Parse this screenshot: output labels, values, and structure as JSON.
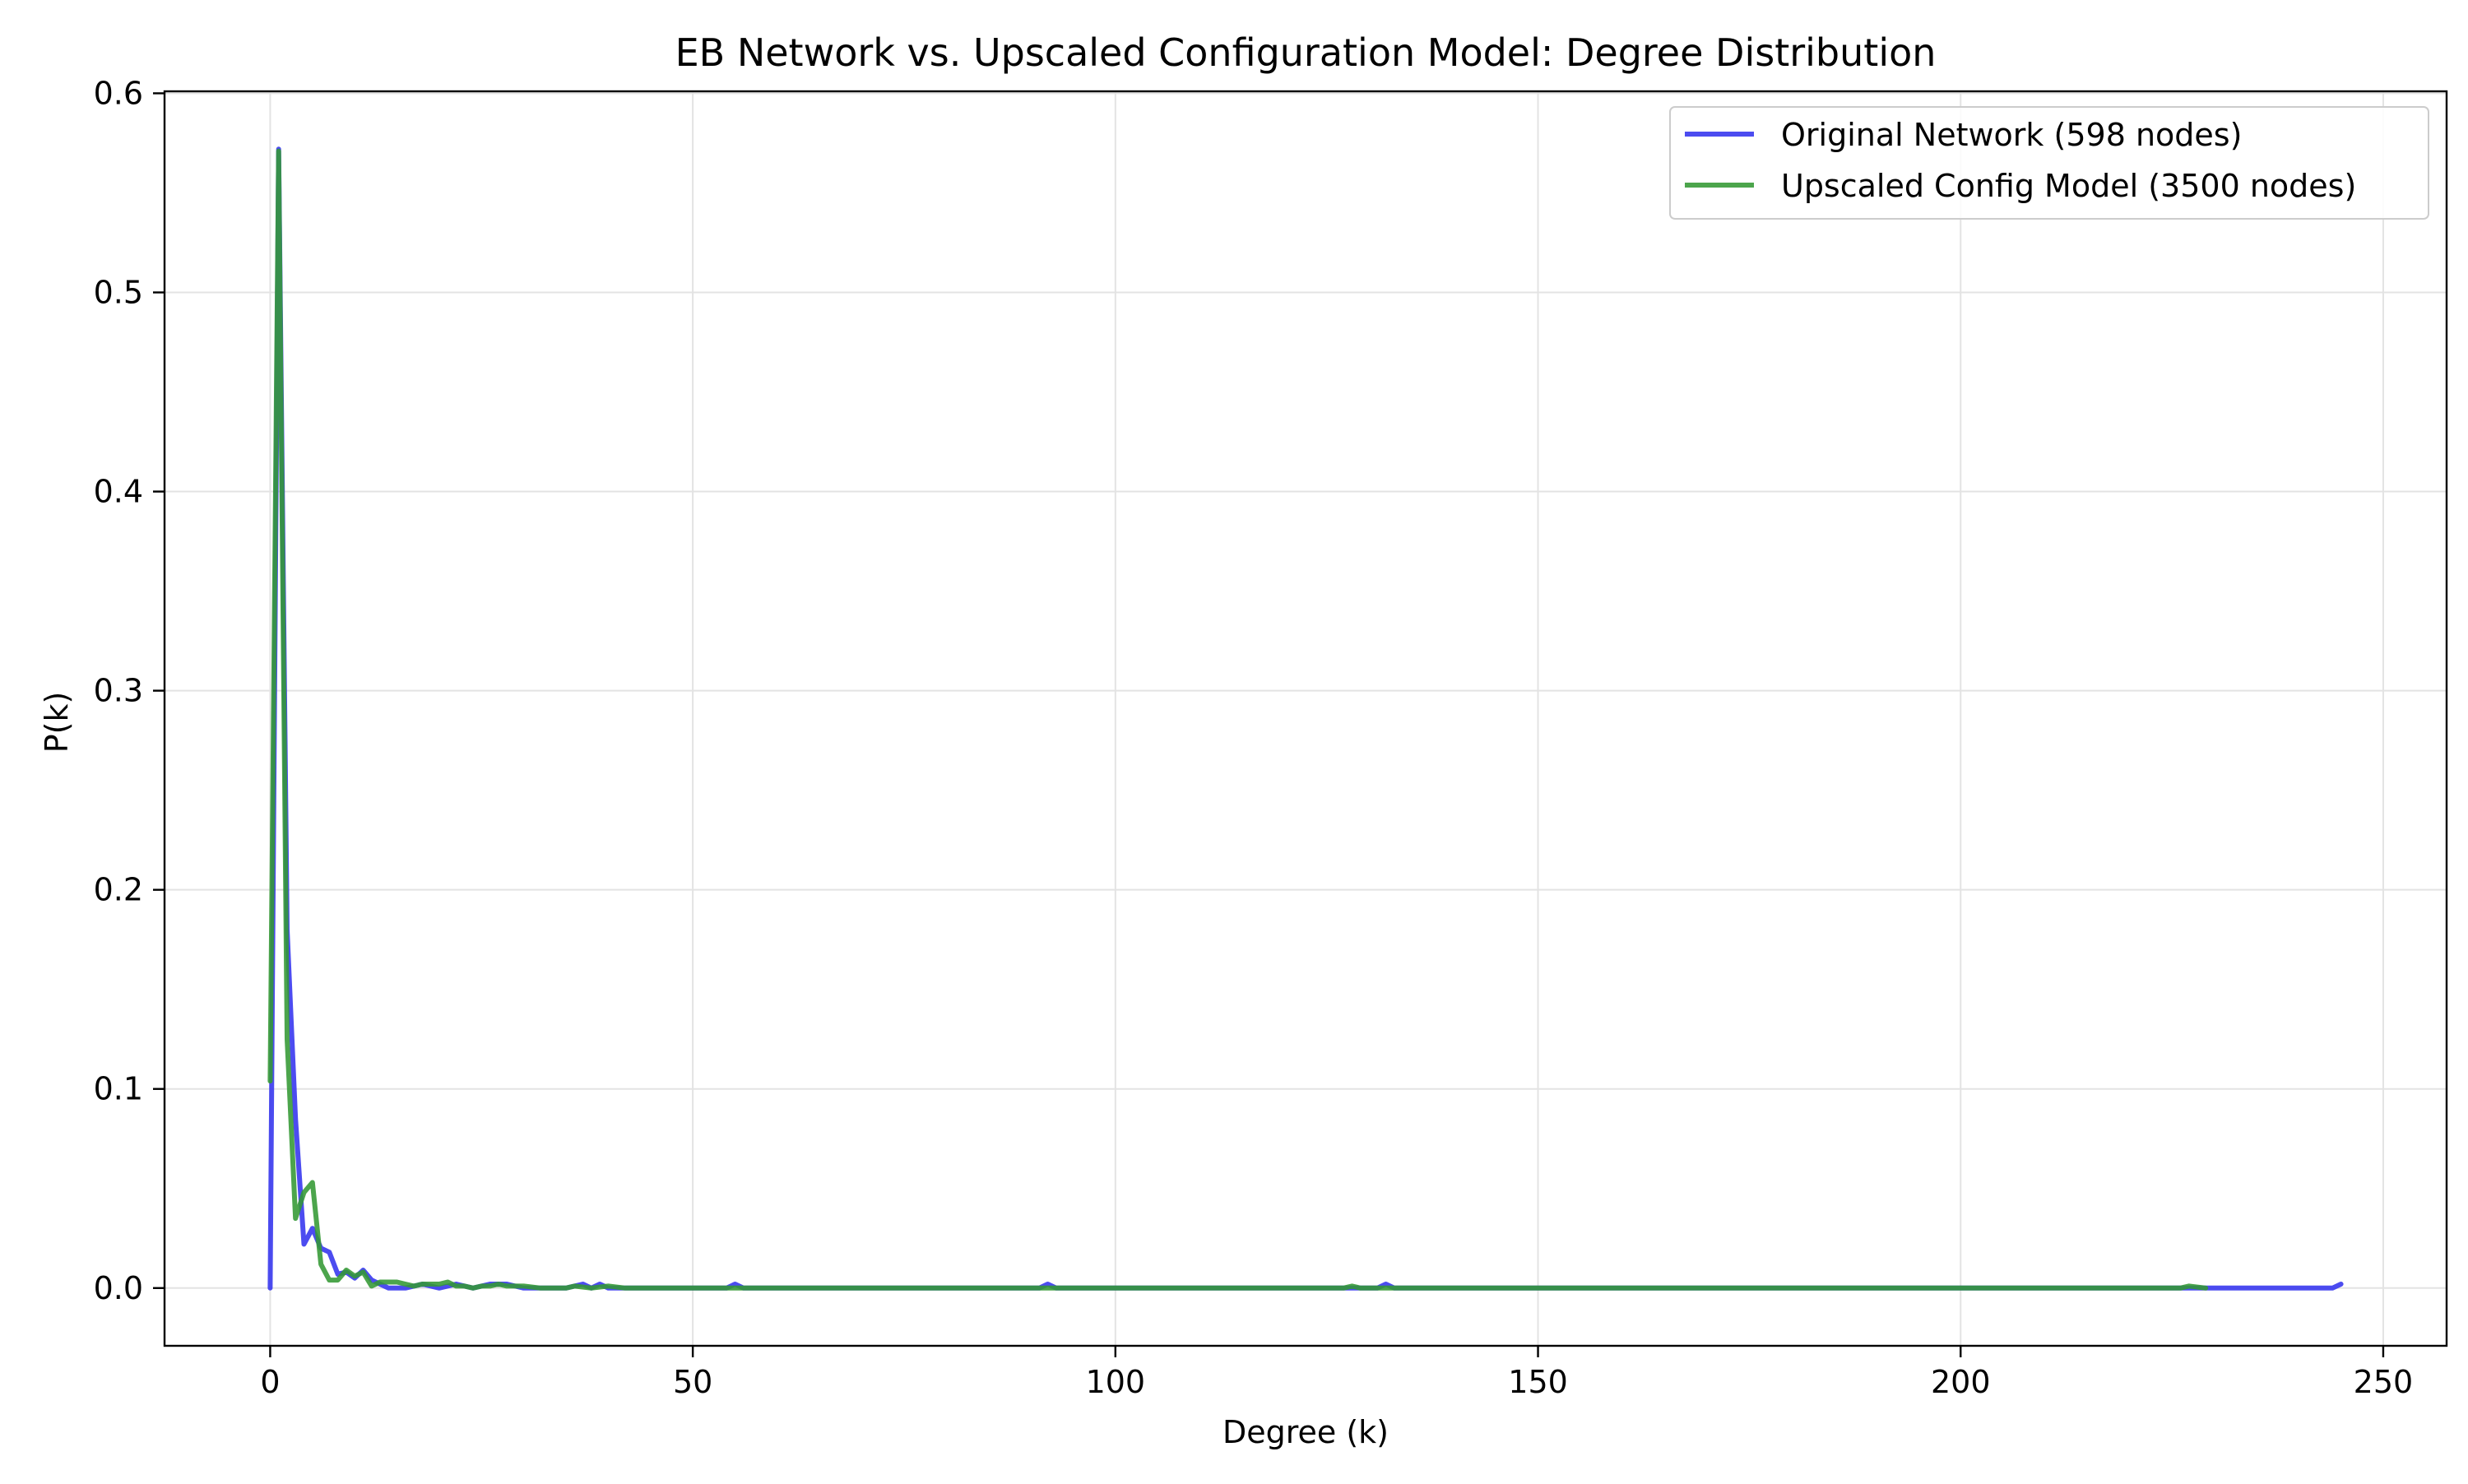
{
  "chart_data": {
    "type": "line",
    "title": "EB Network vs. Upscaled Configuration Model: Degree Distribution",
    "xlabel": "Degree (k)",
    "ylabel": "P(k)",
    "xlim": [
      -12.5,
      257.5
    ],
    "ylim": [
      -0.029,
      0.601
    ],
    "xticks": [
      0,
      50,
      100,
      150,
      200,
      250
    ],
    "yticks": [
      0.0,
      0.1,
      0.2,
      0.3,
      0.4,
      0.5,
      0.6
    ],
    "xtick_labels": [
      "0",
      "50",
      "100",
      "150",
      "200",
      "250"
    ],
    "ytick_labels": [
      "0.0",
      "0.1",
      "0.2",
      "0.3",
      "0.4",
      "0.5",
      "0.6"
    ],
    "grid": true,
    "legend_position": "top-right",
    "series": [
      {
        "name": "Original Network (598 nodes)",
        "color": "#3333ee",
        "x": [
          0,
          1,
          2,
          3,
          4,
          5,
          6,
          7,
          8,
          9,
          10,
          11,
          12,
          13,
          14,
          15,
          16,
          18,
          20,
          22,
          24,
          26,
          28,
          30,
          32,
          35,
          37,
          38,
          39,
          40,
          45,
          50,
          54,
          55,
          56,
          60,
          70,
          80,
          85,
          90,
          91,
          92,
          93,
          100,
          120,
          130,
          131,
          132,
          133,
          150,
          200,
          229,
          240,
          244,
          245
        ],
        "y": [
          0.0,
          0.572,
          0.18,
          0.085,
          0.022,
          0.03,
          0.02,
          0.018,
          0.007,
          0.008,
          0.005,
          0.009,
          0.004,
          0.002,
          0.0,
          0.0,
          0.0,
          0.002,
          0.0,
          0.002,
          0.0,
          0.002,
          0.002,
          0.0,
          0.0,
          0.0,
          0.002,
          0.0,
          0.002,
          0.0,
          0.0,
          0.0,
          0.0,
          0.002,
          0.0,
          0.0,
          0.0,
          0.0,
          0.0,
          0.0,
          0.0,
          0.002,
          0.0,
          0.0,
          0.0,
          0.0,
          0.0,
          0.002,
          0.0,
          0.0,
          0.0,
          0.0,
          0.0,
          0.0,
          0.002
        ]
      },
      {
        "name": "Upscaled Config Model (3500 nodes)",
        "color": "#339933",
        "x": [
          0,
          1,
          2,
          3,
          4,
          5,
          6,
          7,
          8,
          9,
          10,
          11,
          12,
          13,
          14,
          15,
          16,
          17,
          18,
          19,
          20,
          21,
          22,
          23,
          24,
          25,
          26,
          27,
          28,
          29,
          30,
          32,
          35,
          36,
          38,
          40,
          42,
          45,
          50,
          60,
          80,
          90,
          100,
          110,
          120,
          127,
          128,
          129,
          130,
          150,
          180,
          200,
          220,
          223,
          226,
          227,
          229
        ],
        "y": [
          0.104,
          0.571,
          0.125,
          0.035,
          0.048,
          0.053,
          0.012,
          0.004,
          0.004,
          0.009,
          0.006,
          0.008,
          0.001,
          0.003,
          0.003,
          0.003,
          0.002,
          0.001,
          0.002,
          0.002,
          0.002,
          0.003,
          0.001,
          0.001,
          0.0,
          0.001,
          0.001,
          0.002,
          0.001,
          0.001,
          0.001,
          0.0,
          0.0,
          0.001,
          0.0,
          0.001,
          0.0,
          0.0,
          0.0,
          0.0,
          0.0,
          0.0,
          0.0,
          0.0,
          0.0,
          0.0,
          0.001,
          0.0,
          0.0,
          0.0,
          0.0,
          0.0,
          0.0,
          0.0,
          0.0,
          0.001,
          0.0
        ]
      }
    ]
  }
}
